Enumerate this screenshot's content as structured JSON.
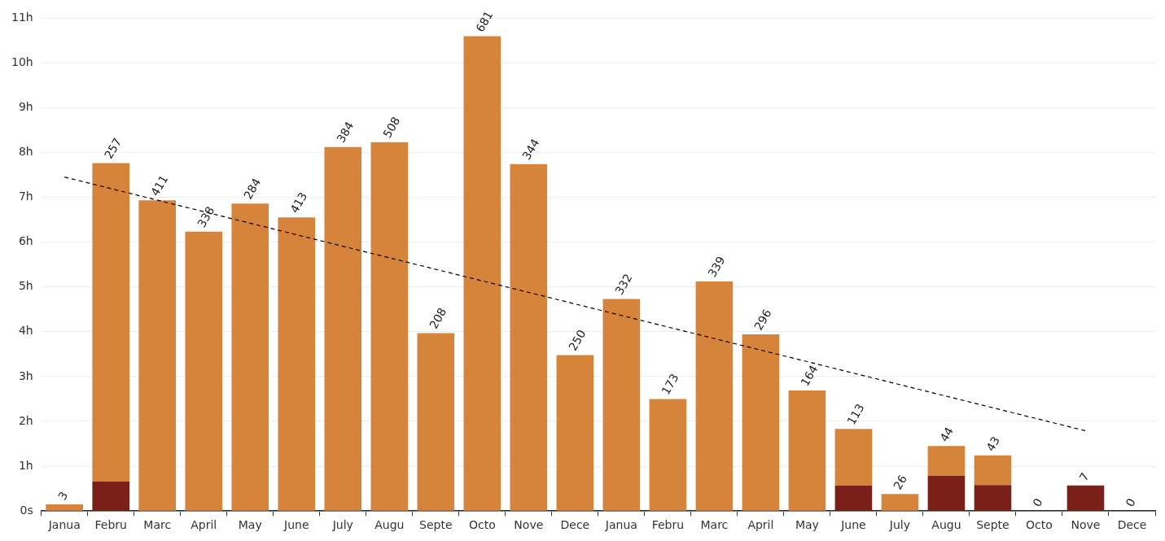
{
  "chart_data": {
    "type": "bar",
    "stacked": true,
    "grid": true,
    "categories": [
      "Janua",
      "Febru",
      "Marc",
      "April",
      "May",
      "June",
      "July",
      "Augu",
      "Septe",
      "Octo",
      "Nove",
      "Dece",
      "Janua",
      "Febru",
      "Marc",
      "April",
      "May",
      "June",
      "July",
      "Augu",
      "Septe",
      "Octo",
      "Nove",
      "Dece"
    ],
    "series": [
      {
        "color": "#7a2019",
        "values": [
          0,
          0.66,
          0,
          0,
          0,
          0,
          0,
          0,
          0,
          0,
          0,
          0,
          0,
          0,
          0,
          0,
          0,
          0.57,
          0,
          0.79,
          0.58,
          0,
          0.57,
          0
        ]
      },
      {
        "color": "#d6843c",
        "values": [
          0.15,
          7.1,
          6.93,
          6.23,
          6.86,
          6.55,
          8.12,
          8.23,
          3.97,
          10.59,
          7.74,
          3.48,
          4.73,
          2.5,
          5.12,
          3.94,
          2.69,
          1.26,
          0.38,
          0.66,
          0.66,
          0,
          0,
          0
        ]
      },
      {
        "type": "line",
        "line_style": "dashed",
        "color": "#000000",
        "values": [
          7.45,
          null,
          null,
          null,
          null,
          null,
          null,
          null,
          null,
          null,
          null,
          null,
          null,
          null,
          null,
          null,
          null,
          null,
          null,
          null,
          null,
          null,
          1.79,
          null
        ]
      }
    ],
    "counts": [
      3,
      257,
      411,
      338,
      284,
      413,
      384,
      508,
      208,
      681,
      344,
      250,
      332,
      173,
      339,
      296,
      164,
      113,
      26,
      44,
      43,
      0,
      7,
      0
    ],
    "ylim": [
      0,
      11
    ],
    "yticks": [
      {
        "value": 0,
        "label": "0s"
      },
      {
        "value": 1,
        "label": "1h"
      },
      {
        "value": 2,
        "label": "2h"
      },
      {
        "value": 3,
        "label": "3h"
      },
      {
        "value": 4,
        "label": "4h"
      },
      {
        "value": 5,
        "label": "5h"
      },
      {
        "value": 6,
        "label": "6h"
      },
      {
        "value": 7,
        "label": "7h"
      },
      {
        "value": 8,
        "label": "8h"
      },
      {
        "value": 9,
        "label": "9h"
      },
      {
        "value": 10,
        "label": "10h"
      },
      {
        "value": 11,
        "label": "11h"
      }
    ]
  }
}
